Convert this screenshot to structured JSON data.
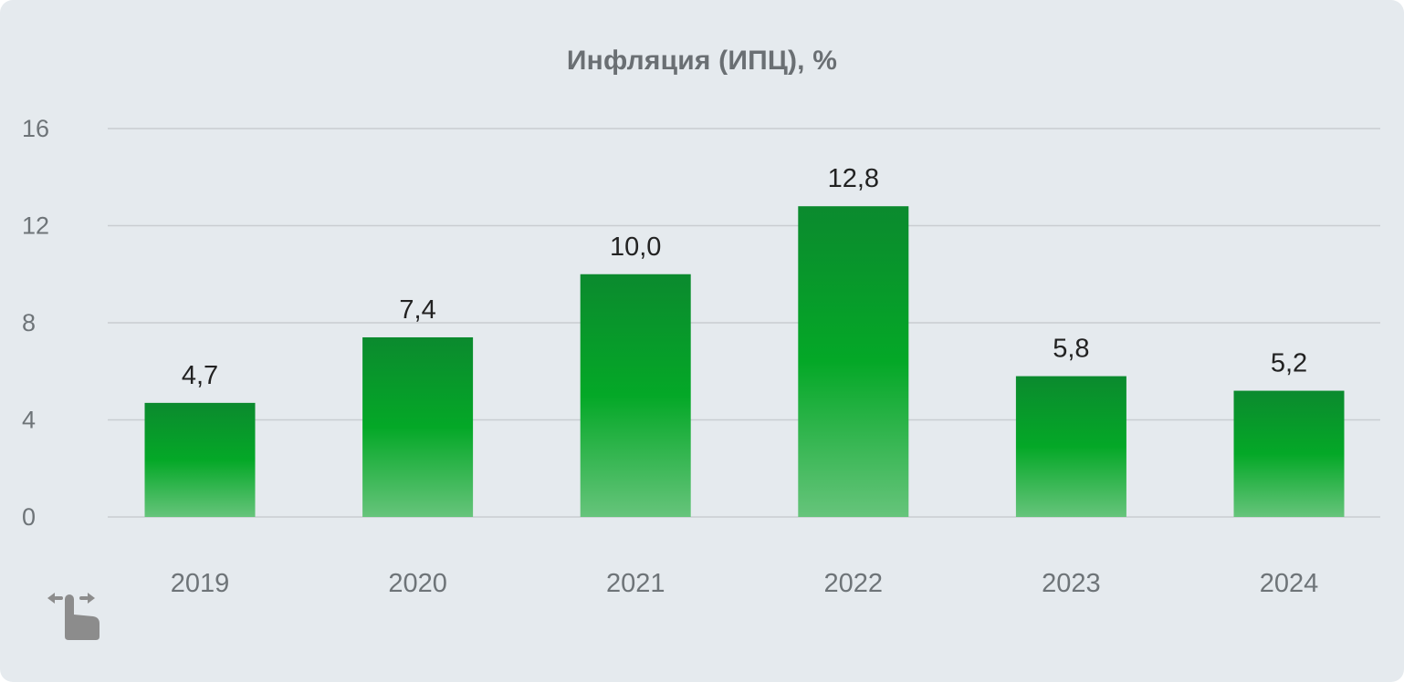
{
  "chart_data": {
    "type": "bar",
    "title": "Инфляция (ИПЦ), %",
    "categories": [
      "2019",
      "2020",
      "2021",
      "2022",
      "2023",
      "2024"
    ],
    "values": [
      4.7,
      7.4,
      10.0,
      12.8,
      5.8,
      5.2
    ],
    "value_labels": [
      "4,7",
      "7,4",
      "10,0",
      "12,8",
      "5,8",
      "5,2"
    ],
    "yticks": [
      0,
      4,
      8,
      12,
      16
    ],
    "ytick_labels": [
      "0",
      "4",
      "8",
      "12",
      "16"
    ],
    "ylim": [
      0,
      16
    ],
    "xlabel": "",
    "ylabel": "",
    "grid": true,
    "legend": "none",
    "colors": {
      "bar_top": "#0b8a2e",
      "bar_mid": "#04a827",
      "bar_bottom": "#66c47b",
      "background": "#e5eaee",
      "gridline": "#c9cdd1",
      "title": "#6a6f73",
      "tick": "#6e7478",
      "data_label": "#222222",
      "icon": "#8c8c8c"
    }
  },
  "icons": {
    "swipe_hint": "swipe-hand-icon"
  }
}
